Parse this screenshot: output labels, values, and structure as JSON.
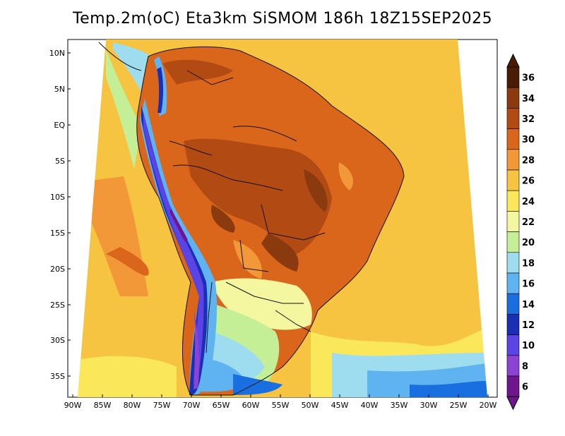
{
  "title": "Temp.2m(oC) Eta3km SiSMOM 186h 18Z15SEP2025",
  "map": {
    "lat_labels": [
      "10N",
      "5N",
      "EQ",
      "5S",
      "10S",
      "15S",
      "20S",
      "25S",
      "30S",
      "35S"
    ],
    "lon_labels": [
      "90W",
      "85W",
      "80W",
      "75W",
      "70W",
      "65W",
      "60W",
      "55W",
      "50W",
      "45W",
      "40W",
      "35W",
      "30W",
      "25W",
      "20W"
    ]
  },
  "colorbar": {
    "labels": [
      "36",
      "34",
      "32",
      "30",
      "28",
      "26",
      "24",
      "22",
      "20",
      "18",
      "16",
      "14",
      "12",
      "10",
      "8",
      "6"
    ],
    "colors": [
      "#4a1c06",
      "#8b3a10",
      "#b24a14",
      "#d9661b",
      "#f29838",
      "#f6c440",
      "#fbe85a",
      "#f4f7a0",
      "#c4ef96",
      "#9edcf0",
      "#5fb3f1",
      "#1a6fe0",
      "#1a2fb4",
      "#5a44e6",
      "#8c42d2",
      "#6f168e"
    ]
  }
}
